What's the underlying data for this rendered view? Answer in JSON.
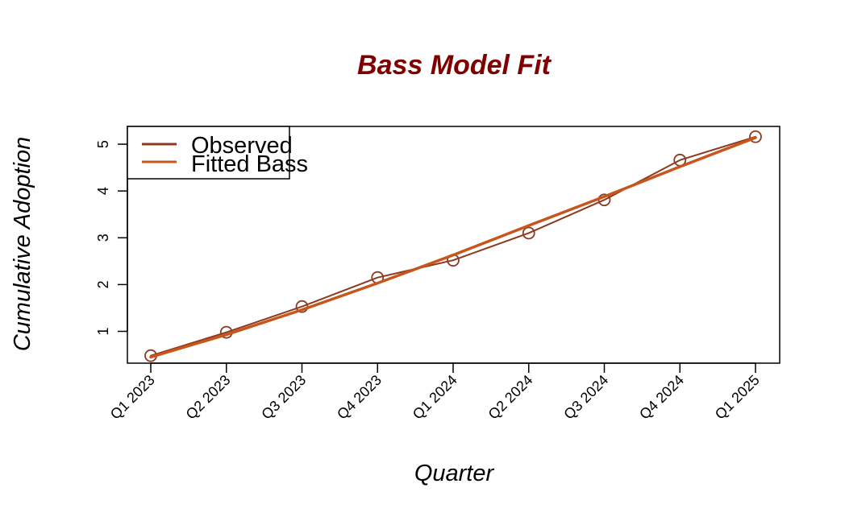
{
  "chart_data": {
    "type": "line",
    "title": "Bass Model Fit",
    "xlabel": "Quarter",
    "ylabel": "Cumulative Adoption",
    "categories": [
      "Q1 2023",
      "Q2 2023",
      "Q3 2023",
      "Q4 2023",
      "Q1 2024",
      "Q2 2024",
      "Q3 2024",
      "Q4 2024",
      "Q1 2025"
    ],
    "yticks": [
      1,
      2,
      3,
      4,
      5
    ],
    "ylim": [
      0.32,
      5.38
    ],
    "series": [
      {
        "name": "Observed",
        "color": "#8B3A1F",
        "markers": "open-circle",
        "values": [
          0.48,
          0.98,
          1.53,
          2.15,
          2.52,
          3.1,
          3.81,
          4.66,
          5.16
        ]
      },
      {
        "name": "Fitted Bass",
        "color": "#C8561C",
        "markers": "none",
        "values": [
          0.45,
          0.93,
          1.46,
          2.03,
          2.63,
          3.26,
          3.88,
          4.52,
          5.14
        ]
      }
    ],
    "legend": {
      "position": "top-left",
      "entries": [
        "Observed",
        "Fitted Bass"
      ]
    },
    "grid": false
  }
}
